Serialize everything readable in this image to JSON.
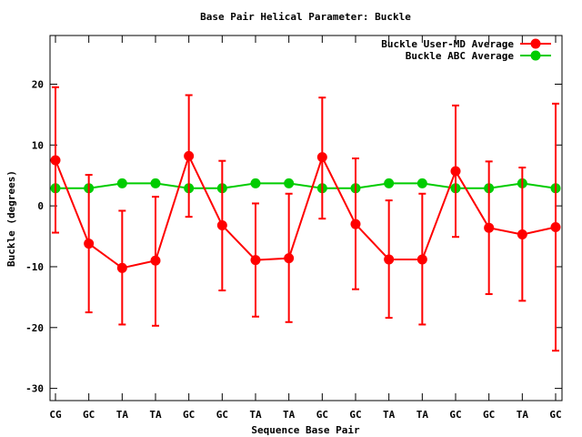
{
  "chart_data": {
    "type": "line",
    "title": "Base Pair Helical Parameter: Buckle",
    "xlabel": "Sequence Base Pair",
    "ylabel": "Buckle (degrees)",
    "categories": [
      "CG",
      "GC",
      "TA",
      "TA",
      "GC",
      "GC",
      "TA",
      "TA",
      "GC",
      "GC",
      "TA",
      "TA",
      "GC",
      "GC",
      "TA",
      "GC"
    ],
    "ylim": [
      -32,
      28
    ],
    "yticks": [
      -30,
      -20,
      -10,
      0,
      10,
      20
    ],
    "legend_position": "top-right",
    "grid": false,
    "series": [
      {
        "name": "Buckle User-MD Average",
        "color": "#ff0000",
        "values": [
          7.5,
          -6.2,
          -10.2,
          -9.0,
          8.2,
          -3.2,
          -8.9,
          -8.6,
          8.0,
          -3.0,
          -8.8,
          -8.8,
          5.7,
          -3.6,
          -4.7,
          -3.5
        ],
        "err_low": [
          -4.4,
          -17.5,
          -19.5,
          -19.7,
          -1.8,
          -13.9,
          -18.2,
          -19.1,
          -2.1,
          -13.7,
          -18.4,
          -19.5,
          -5.1,
          -14.5,
          -15.6,
          -23.8
        ],
        "err_high": [
          19.5,
          5.1,
          -0.8,
          1.5,
          18.2,
          7.4,
          0.4,
          2.0,
          17.8,
          7.8,
          0.9,
          2.0,
          16.5,
          7.3,
          6.3,
          16.8
        ]
      },
      {
        "name": "Buckle ABC Average",
        "color": "#00cc00",
        "values": [
          2.9,
          2.9,
          3.7,
          3.7,
          2.9,
          2.9,
          3.7,
          3.7,
          2.9,
          2.9,
          3.7,
          3.7,
          2.9,
          2.9,
          3.7,
          2.9
        ]
      }
    ]
  }
}
